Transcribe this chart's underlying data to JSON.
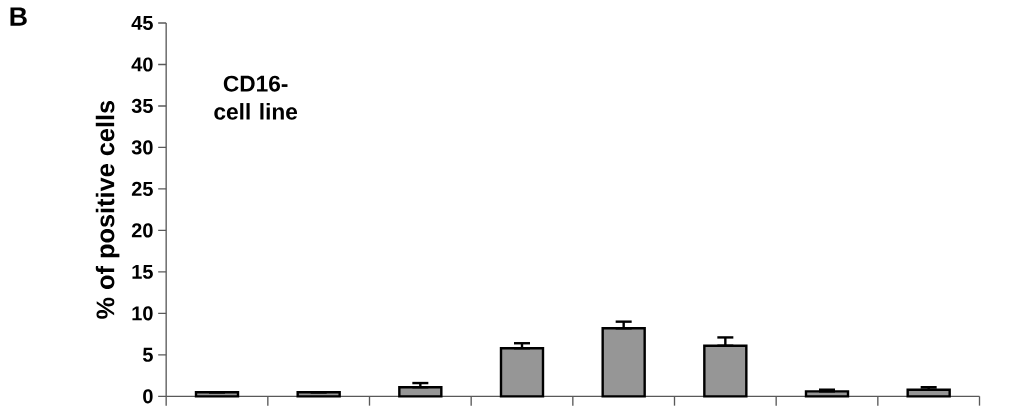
{
  "chart_data": {
    "type": "bar",
    "title": "B",
    "ylabel": "% of positive cells",
    "annotations": [
      "CD16- cell line"
    ],
    "categories": [
      null,
      null,
      null,
      null,
      null,
      null,
      null,
      null
    ],
    "values": [
      0.5,
      0.5,
      1.1,
      5.8,
      8.2,
      6.1,
      0.6,
      0.8
    ],
    "errors": [
      null,
      null,
      [
        1.1,
        1.6
      ],
      [
        5.8,
        6.4
      ],
      [
        8.2,
        9.0
      ],
      [
        6.1,
        7.1
      ],
      [
        0.6,
        0.8
      ],
      [
        0.8,
        1.1
      ]
    ],
    "color": "#969696",
    "ylim": [
      0,
      45
    ],
    "yticks": [
      0,
      5,
      10,
      15,
      20,
      25,
      30,
      35,
      40,
      45
    ],
    "grid": false
  }
}
